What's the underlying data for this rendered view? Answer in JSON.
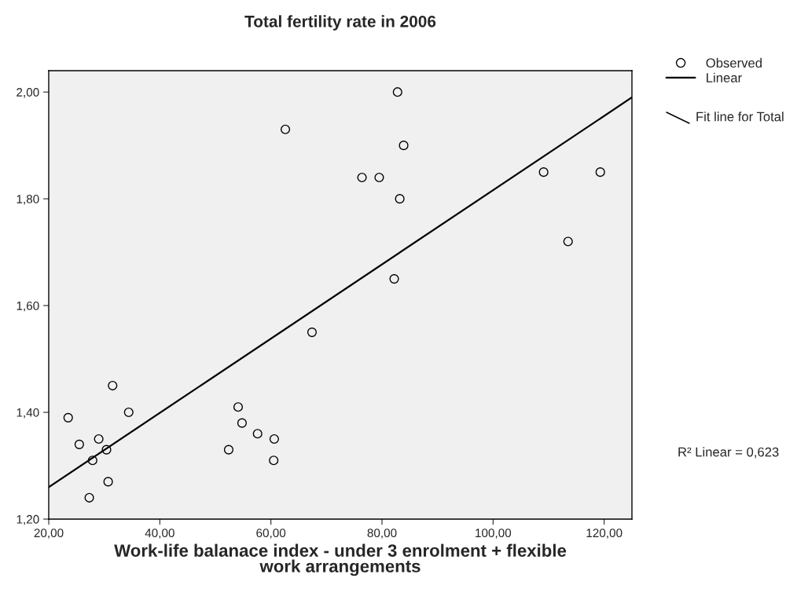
{
  "chart_data": {
    "type": "scatter",
    "title": "Total fertility rate in 2006",
    "xlabel": "Work-life balanace index - under 3 enrolment + flexible\nwork arrangements",
    "xlim": [
      20,
      125
    ],
    "ylim": [
      1.2,
      2.04
    ],
    "xticks": [
      {
        "value": 20,
        "label": "20,00"
      },
      {
        "value": 40,
        "label": "40,00"
      },
      {
        "value": 60,
        "label": "60,00"
      },
      {
        "value": 80,
        "label": "80,00"
      },
      {
        "value": 100,
        "label": "100,00"
      },
      {
        "value": 120,
        "label": "120,00"
      }
    ],
    "yticks": [
      {
        "value": 1.2,
        "label": "1,20"
      },
      {
        "value": 1.4,
        "label": "1,40"
      },
      {
        "value": 1.6,
        "label": "1,60"
      },
      {
        "value": 1.8,
        "label": "1,80"
      },
      {
        "value": 2.0,
        "label": "2,00"
      }
    ],
    "grid": false,
    "legend": "top right",
    "series": [
      {
        "name": "Observed",
        "marker": "circle",
        "color": "#000000",
        "x": [
          23.5,
          25.5,
          27.9,
          27.3,
          29.0,
          30.4,
          30.7,
          31.5,
          34.4,
          52.4,
          54.1,
          54.8,
          57.6,
          60.5,
          60.6,
          62.6,
          67.4,
          76.4,
          79.5,
          82.2,
          82.8,
          83.2,
          83.9,
          109.1,
          113.5,
          119.3
        ],
        "values": [
          1.39,
          1.34,
          1.31,
          1.24,
          1.35,
          1.33,
          1.27,
          1.45,
          1.4,
          1.33,
          1.41,
          1.38,
          1.36,
          1.31,
          1.35,
          1.93,
          1.55,
          1.84,
          1.84,
          1.65,
          2.0,
          1.8,
          1.9,
          1.85,
          1.72,
          1.85
        ]
      },
      {
        "name": "Linear",
        "type": "line",
        "color": "#000000",
        "x": [
          20,
          125
        ],
        "values": [
          1.26,
          1.99
        ]
      }
    ],
    "annotations": [
      "Fit line for Total",
      "R² Linear = 0,623"
    ]
  }
}
